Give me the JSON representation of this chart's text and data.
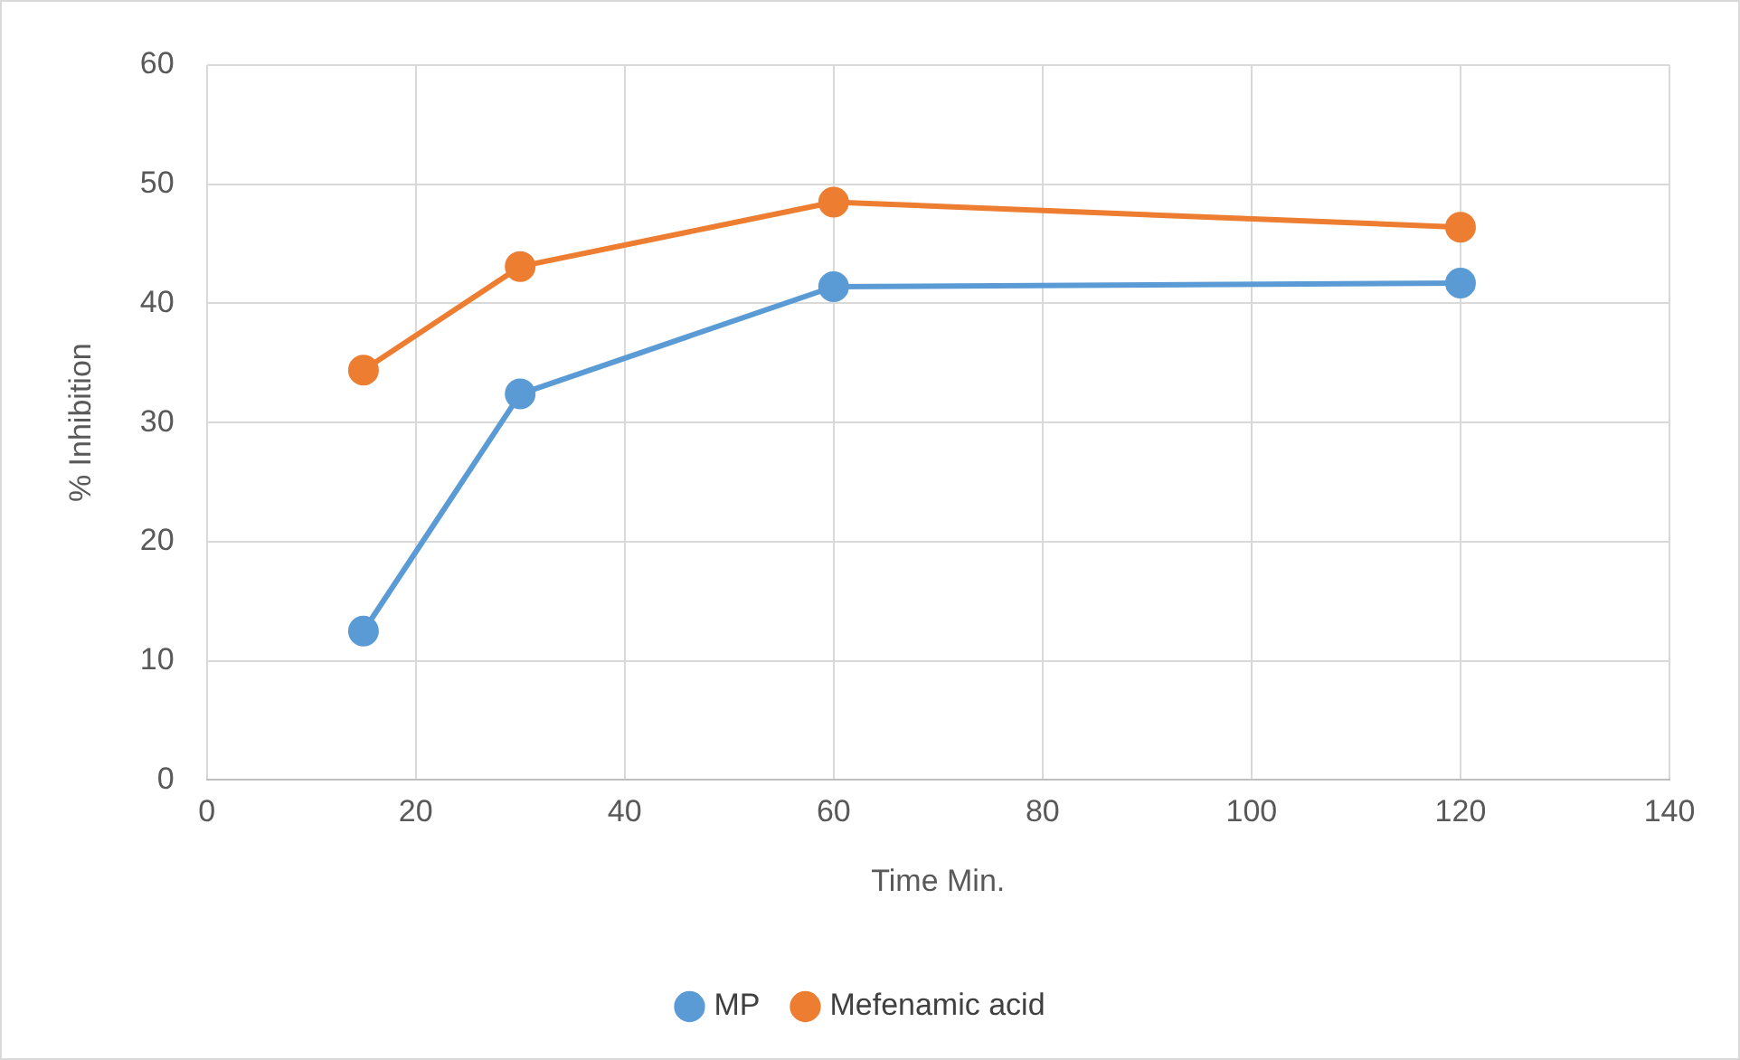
{
  "chart_data": {
    "type": "line",
    "xlabel": "Time Min.",
    "ylabel": "% Inhibition",
    "x": [
      15,
      30,
      60,
      120
    ],
    "series": [
      {
        "name": "MP",
        "color": "#5b9bd5",
        "values": [
          12.5,
          32.4,
          41.4,
          41.7
        ]
      },
      {
        "name": "Mefenamic acid",
        "color": "#ed7d31",
        "values": [
          34.4,
          43.1,
          48.5,
          46.4
        ]
      }
    ],
    "xlim": [
      0,
      140
    ],
    "xticks": [
      0,
      20,
      40,
      60,
      80,
      100,
      120,
      140
    ],
    "ylim": [
      0,
      60
    ],
    "yticks": [
      0,
      10,
      20,
      30,
      40,
      50,
      60
    ],
    "grid": true,
    "legend": "bottom",
    "marker": "circle",
    "line_style": "solid"
  }
}
